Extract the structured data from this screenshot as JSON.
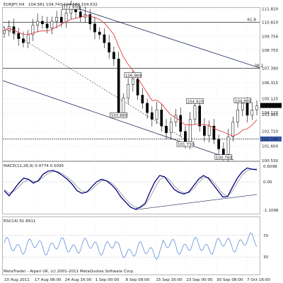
{
  "chart_data": [
    {
      "panel": "main",
      "type": "candlestick",
      "title": "EURJPY,H4",
      "ohlc_text": "104.581 104.743 104.509 104.632",
      "y_ticks": [
        111.82,
        110.82,
        109.756,
        108.75,
        107.39,
        106.315,
        105.125,
        104.12,
        103.96,
        102.72,
        101.6,
        100.53
      ],
      "ylim": [
        100.53,
        111.9
      ],
      "x_ticks": [
        "10 Aug 2011",
        "17 Aug 08:00",
        "24 Aug 16:00",
        "1 Sep 00:00",
        "8 Sep 08:00",
        "15 Sep 16:00",
        "23 Sep 00:00",
        "30 Sep 08:00",
        "7 Oct 16:00"
      ],
      "current_price": "104.632",
      "marked_level": "102.140",
      "fib_labels": [
        "61.8",
        "38.2"
      ],
      "price_labels": [
        {
          "text": "111.930",
          "x_index": 14,
          "value": 111.93
        },
        {
          "text": "106.869",
          "x_index": 27,
          "value": 106.869
        },
        {
          "text": "103.880",
          "x_index": 24,
          "value": 103.88
        },
        {
          "text": "104.920",
          "x_index": 40,
          "value": 104.92
        },
        {
          "text": "101.730",
          "x_index": 38,
          "value": 101.73
        },
        {
          "text": "100.760",
          "x_index": 46,
          "value": 100.76
        },
        {
          "text": "104.980",
          "x_index": 50,
          "value": 104.98
        }
      ],
      "close_series": [
        110.2,
        110.5,
        110.0,
        109.6,
        109.3,
        109.9,
        110.6,
        110.9,
        110.7,
        110.4,
        110.9,
        111.2,
        110.8,
        111.5,
        111.9,
        111.6,
        111.2,
        111.4,
        110.7,
        110.1,
        109.9,
        109.3,
        108.6,
        108.1,
        104.1,
        105.2,
        106.2,
        106.6,
        105.4,
        104.8,
        104.1,
        103.6,
        104.3,
        103.1,
        102.6,
        103.4,
        103.9,
        102.7,
        101.9,
        103.6,
        104.6,
        103.1,
        102.4,
        103.1,
        102.1,
        101.4,
        101.0,
        102.3,
        103.4,
        104.3,
        104.8,
        103.9,
        104.3,
        104.6
      ]
    },
    {
      "panel": "macd",
      "type": "line",
      "label": "MACD(12,26,9) 0.4774 0.5095",
      "y_ticks": [
        "0.6098",
        "0.00",
        "-1.1096"
      ],
      "ylim": [
        -1.2,
        0.7
      ],
      "series": [
        {
          "values": [
            -0.35,
            -0.55,
            -0.3,
            -0.05,
            0.15,
            0.1,
            -0.05,
            0.05,
            0.3,
            0.42,
            0.45,
            0.38,
            0.25,
            0.1,
            -0.1,
            -0.35,
            -0.45,
            -0.4,
            -0.2,
            0.0,
            0.1,
            0.05,
            -0.1,
            -0.3,
            -0.6,
            -0.8,
            -1.0,
            -1.08,
            -1.0,
            -0.85,
            -0.4,
            0.0,
            0.25,
            0.2,
            -0.05,
            -0.3,
            -0.42,
            -0.48,
            -0.4,
            -0.15,
            0.1,
            0.25,
            0.15,
            -0.1,
            -0.35,
            -0.6,
            -0.58,
            -0.2,
            0.15,
            0.4,
            0.55,
            0.5,
            0.48
          ]
        },
        {
          "values": [
            -0.3,
            -0.45,
            -0.38,
            -0.2,
            0.0,
            0.08,
            0.02,
            0.02,
            0.18,
            0.33,
            0.41,
            0.4,
            0.32,
            0.18,
            0.02,
            -0.2,
            -0.36,
            -0.41,
            -0.31,
            -0.12,
            0.03,
            0.06,
            -0.03,
            -0.2,
            -0.45,
            -0.68,
            -0.88,
            -1.0,
            -1.02,
            -0.92,
            -0.62,
            -0.25,
            0.08,
            0.2,
            0.08,
            -0.16,
            -0.34,
            -0.44,
            -0.43,
            -0.26,
            -0.03,
            0.16,
            0.18,
            0.02,
            -0.22,
            -0.47,
            -0.56,
            -0.36,
            -0.03,
            0.26,
            0.45,
            0.5,
            0.51
          ]
        }
      ]
    },
    {
      "panel": "rsi",
      "type": "line",
      "label": "RSI(14) 61.8911",
      "y_ticks": [
        "70",
        "30"
      ],
      "ylim": [
        0,
        100
      ]
    }
  ],
  "footer": {
    "copyright": "MetaTrader - Alpari UK, (c) 2001-2011 MetaQuotes Software Corp."
  },
  "colors": {
    "background": "#ffffff",
    "candles": "#000000",
    "moving_average": "#e04040",
    "macd": "#000080",
    "signal": "#909090",
    "rsi": "#4a7fd6",
    "level_box": "#3355aa",
    "price_box": "#000000",
    "trend_lines": "#1e2a5a"
  }
}
